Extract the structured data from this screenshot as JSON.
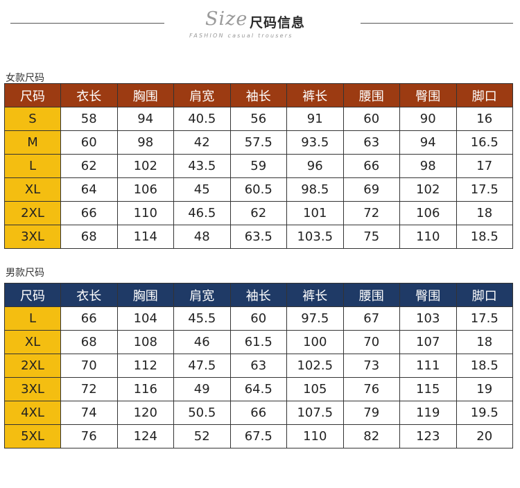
{
  "header": {
    "script_word": "Size",
    "title": "尺码信息",
    "subtitle": "FASHION casual trousers"
  },
  "women": {
    "label": "女款尺码",
    "headers": [
      "尺码",
      "衣长",
      "胸围",
      "肩宽",
      "袖长",
      "裤长",
      "腰围",
      "臀围",
      "脚口"
    ],
    "rows": [
      [
        "S",
        "58",
        "94",
        "40.5",
        "56",
        "91",
        "60",
        "90",
        "16"
      ],
      [
        "M",
        "60",
        "98",
        "42",
        "57.5",
        "93.5",
        "63",
        "94",
        "16.5"
      ],
      [
        "L",
        "62",
        "102",
        "43.5",
        "59",
        "96",
        "66",
        "98",
        "17"
      ],
      [
        "XL",
        "64",
        "106",
        "45",
        "60.5",
        "98.5",
        "69",
        "102",
        "17.5"
      ],
      [
        "2XL",
        "66",
        "110",
        "46.5",
        "62",
        "101",
        "72",
        "106",
        "18"
      ],
      [
        "3XL",
        "68",
        "114",
        "48",
        "63.5",
        "103.5",
        "75",
        "110",
        "18.5"
      ]
    ]
  },
  "men": {
    "label": "男款尺码",
    "headers": [
      "尺码",
      "衣长",
      "胸围",
      "肩宽",
      "袖长",
      "裤长",
      "腰围",
      "臀围",
      "脚口"
    ],
    "rows": [
      [
        "L",
        "66",
        "104",
        "45.5",
        "60",
        "97.5",
        "67",
        "103",
        "17.5"
      ],
      [
        "XL",
        "68",
        "108",
        "46",
        "61.5",
        "100",
        "70",
        "107",
        "18"
      ],
      [
        "2XL",
        "70",
        "112",
        "47.5",
        "63",
        "102.5",
        "73",
        "111",
        "18.5"
      ],
      [
        "3XL",
        "72",
        "116",
        "49",
        "64.5",
        "105",
        "76",
        "115",
        "19"
      ],
      [
        "4XL",
        "74",
        "120",
        "50.5",
        "66",
        "107.5",
        "79",
        "119",
        "19.5"
      ],
      [
        "5XL",
        "76",
        "124",
        "52",
        "67.5",
        "110",
        "82",
        "123",
        "20"
      ]
    ]
  },
  "colors": {
    "women_header": "#9c3b12",
    "men_header": "#1f3a66",
    "size_cell": "#f4be11"
  }
}
